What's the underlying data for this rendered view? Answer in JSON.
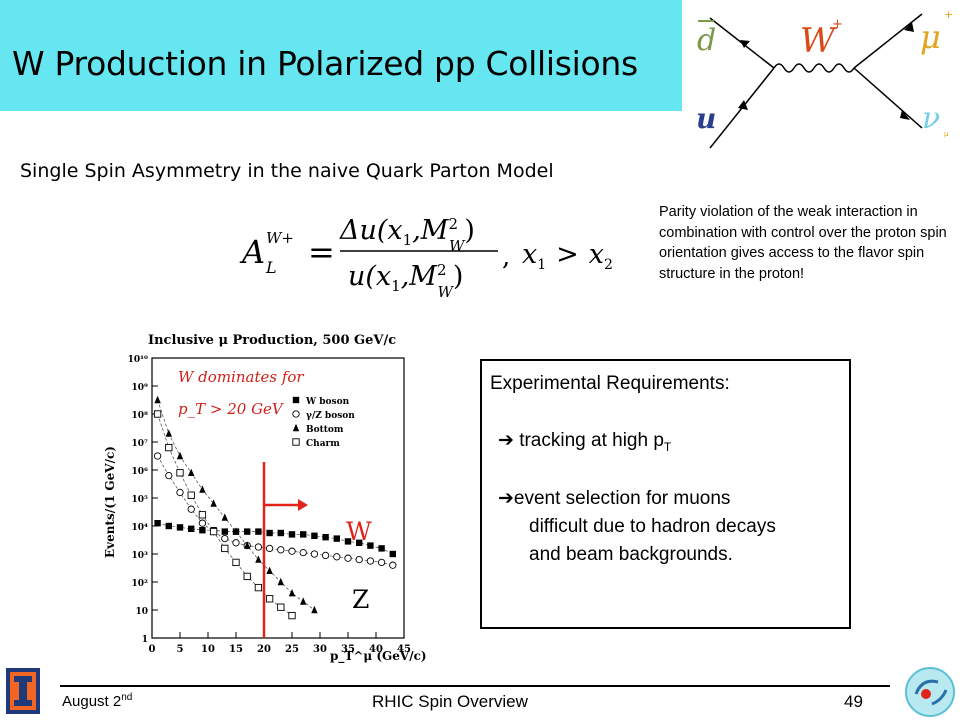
{
  "title": "W Production in Polarized pp Collisions",
  "subtitle": "Single Spin Asymmetry in the naive Quark Parton Model",
  "feynman": {
    "incoming_top": "d",
    "incoming_bottom": "u",
    "boson": "W",
    "boson_charge": "+",
    "outgoing_top": "μ",
    "outgoing_top_charge": "+",
    "outgoing_bottom": "ν",
    "outgoing_bottom_sub": "μ",
    "colors": {
      "d": "#7d9a4a",
      "u": "#2c3f8c",
      "W": "#d84a1a",
      "mu": "#e3a41c",
      "nu": "#6fd0e8"
    }
  },
  "formula": {
    "lhs_A": "A",
    "lhs_sub": "L",
    "lhs_sup": "W+",
    "equals": "=",
    "num_delta": "Δu(x",
    "num_sub1": "1",
    "num_mid": ",M",
    "num_msq": "2",
    "num_msub": "W",
    "den_text": "u(x",
    "den_sub1": "1",
    "den_mid": ",M",
    "den_msq": "2",
    "den_msub": "W",
    "close": ")",
    "condition_x1": "x",
    "condition_sub1": "1",
    "condition_gt": ">",
    "condition_x2": "x",
    "condition_sub2": "2",
    "comma": ","
  },
  "parity_note": "Parity violation of the weak interaction in combination with control over the proton spin orientation gives access to the flavor spin structure in the proton!",
  "requirements": {
    "title": "Experimental Requirements:",
    "item1_arrow": "➔",
    "item1_text": "tracking at high p",
    "item1_sub": "T",
    "item2_arrow": "➔",
    "item2_line1": "event selection for muons",
    "item2_line2": "difficult due to hadron decays",
    "item2_line3": "and beam backgrounds."
  },
  "chart_data": {
    "type": "scatter",
    "title": "Inclusive μ Production, 500 GeV/c",
    "xlabel": "p_T^μ (GeV/c)",
    "ylabel": "Events/(1 GeV/c)",
    "xlim": [
      0,
      45
    ],
    "ylim_log10": [
      0,
      10
    ],
    "y_scale": "log",
    "x_ticks": [
      "0",
      "5",
      "10",
      "15",
      "20",
      "25",
      "30",
      "35",
      "40",
      "45"
    ],
    "y_ticks": [
      "1",
      "10",
      "10²",
      "10³",
      "10⁴",
      "10⁵",
      "10⁶",
      "10⁷",
      "10⁸",
      "10⁹",
      "10¹⁰"
    ],
    "legend": [
      "W boson",
      "γ/Z boson",
      "Bottom",
      "Charm"
    ],
    "legend_position": "top-right",
    "annotation_line1": "W dominates for",
    "annotation_line2": "p_T > 20 GeV",
    "cut_label_W": "W",
    "cut_label_Z": "Z",
    "cut_x": 20,
    "series": [
      {
        "name": "W boson",
        "marker": "filled-square",
        "x": [
          1,
          3,
          5,
          7,
          9,
          11,
          13,
          15,
          17,
          19,
          21,
          23,
          25,
          27,
          29,
          31,
          33,
          35,
          37,
          39,
          41,
          43
        ],
        "log10_y": [
          4.1,
          4.0,
          3.95,
          3.9,
          3.85,
          3.85,
          3.8,
          3.8,
          3.8,
          3.8,
          3.75,
          3.75,
          3.7,
          3.7,
          3.65,
          3.6,
          3.55,
          3.45,
          3.4,
          3.3,
          3.2,
          3.0
        ]
      },
      {
        "name": "γ/Z boson",
        "marker": "open-circle",
        "x": [
          1,
          3,
          5,
          7,
          9,
          11,
          13,
          15,
          17,
          19,
          21,
          23,
          25,
          27,
          29,
          31,
          33,
          35,
          37,
          39,
          41,
          43
        ],
        "log10_y": [
          6.5,
          5.8,
          5.2,
          4.6,
          4.1,
          3.8,
          3.55,
          3.4,
          3.3,
          3.25,
          3.2,
          3.15,
          3.1,
          3.05,
          3.0,
          2.95,
          2.9,
          2.85,
          2.8,
          2.75,
          2.7,
          2.6
        ]
      },
      {
        "name": "Bottom",
        "marker": "filled-triangle",
        "x": [
          1,
          3,
          5,
          7,
          9,
          11,
          13,
          15,
          17,
          19,
          21,
          23,
          25,
          27,
          29
        ],
        "log10_y": [
          8.5,
          7.3,
          6.5,
          5.9,
          5.3,
          4.8,
          4.3,
          3.8,
          3.3,
          2.8,
          2.4,
          2.0,
          1.6,
          1.3,
          1.0
        ]
      },
      {
        "name": "Charm",
        "marker": "open-square",
        "x": [
          1,
          3,
          5,
          7,
          9,
          11,
          13,
          15,
          17,
          19,
          21,
          23,
          25
        ],
        "log10_y": [
          8.0,
          6.8,
          5.9,
          5.1,
          4.4,
          3.8,
          3.2,
          2.7,
          2.2,
          1.8,
          1.4,
          1.1,
          0.8
        ]
      }
    ]
  },
  "footer": {
    "date": "August 2",
    "date_sup": "nd",
    "center": "RHIC Spin Overview",
    "page": "49"
  }
}
